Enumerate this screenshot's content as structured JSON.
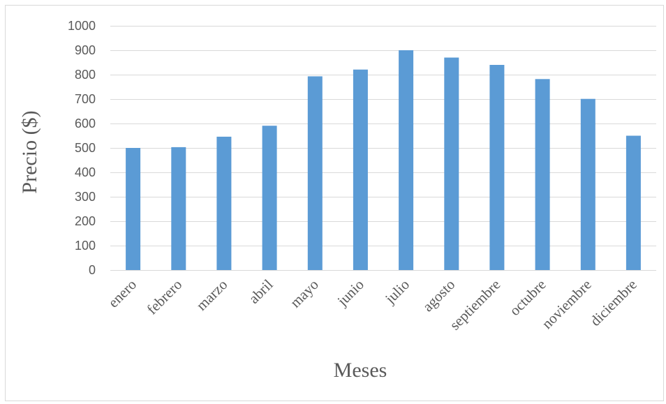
{
  "chart_data": {
    "type": "bar",
    "title": "",
    "xlabel": "Meses",
    "ylabel": "Precio ($)",
    "ylim": [
      0,
      1000
    ],
    "yticks": [
      0,
      100,
      200,
      300,
      400,
      500,
      600,
      700,
      800,
      900,
      1000
    ],
    "grid": true,
    "legend": "none",
    "bar_color": "#5b9bd5",
    "categories": [
      "enero",
      "febrero",
      "marzo",
      "abril",
      "mayo",
      "junio",
      "julio",
      "agosto",
      "septiembre",
      "octubre",
      "noviembre",
      "diciembre"
    ],
    "values": [
      500,
      503,
      546,
      591,
      793,
      821,
      900,
      870,
      840,
      782,
      701,
      550
    ]
  }
}
